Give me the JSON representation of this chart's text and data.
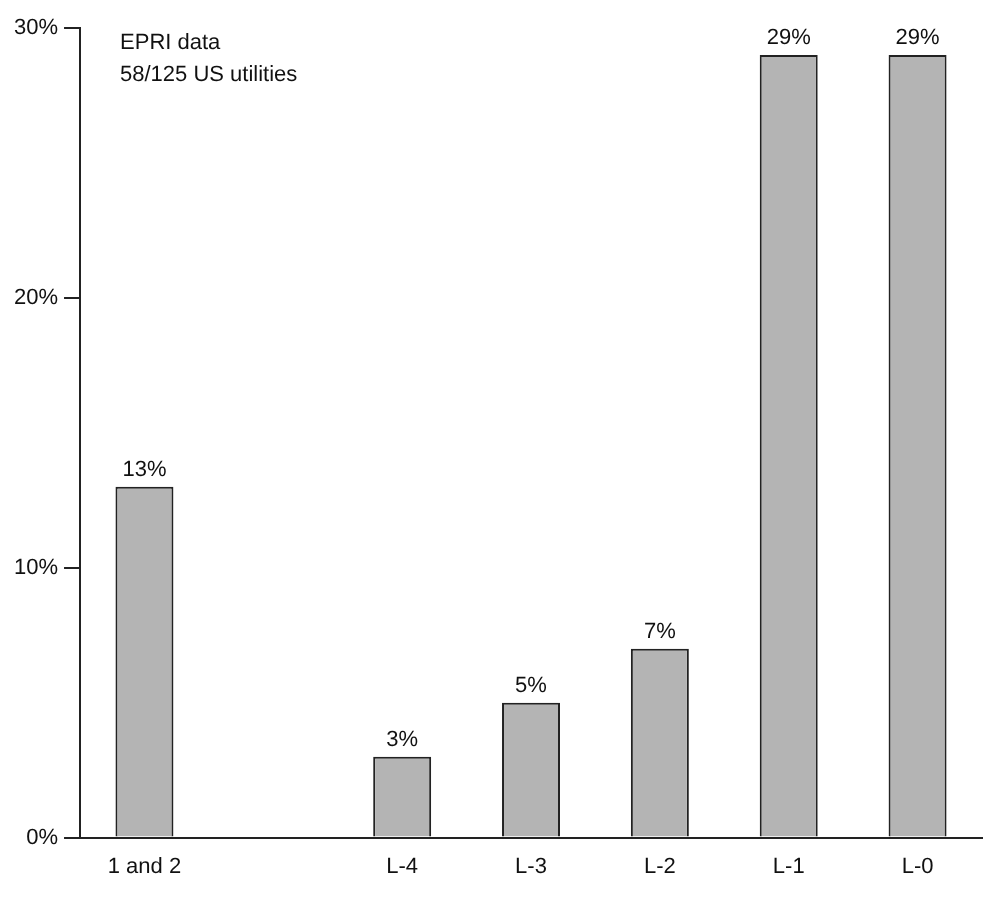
{
  "chart_data": {
    "type": "bar",
    "categories": [
      "1 and 2",
      null,
      "L-4",
      "L-3",
      "L-2",
      "L-1",
      "L-0"
    ],
    "values": [
      13,
      null,
      3,
      5,
      7,
      29,
      29
    ],
    "value_labels": [
      "13%",
      null,
      "3%",
      "5%",
      "7%",
      "29%",
      "29%"
    ],
    "color": "#b4b4b4",
    "ylim": [
      0,
      30
    ],
    "yticks": [
      {
        "value": 0,
        "label": "0%"
      },
      {
        "value": 10,
        "label": "10%"
      },
      {
        "value": 20,
        "label": "20%"
      },
      {
        "value": 30,
        "label": "30%"
      }
    ],
    "annotations": [
      "EPRI data",
      "58/125 US utilities"
    ],
    "grid": false,
    "legend": false
  }
}
